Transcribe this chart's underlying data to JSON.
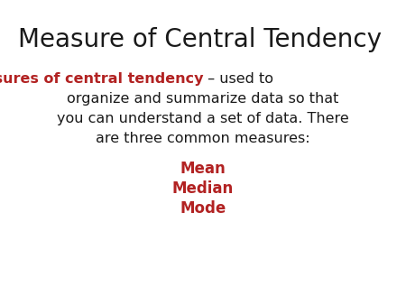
{
  "title": "Measure of Central Tendency",
  "title_color": "#1a1a1a",
  "title_fontsize": 20,
  "background_color": "#ffffff",
  "body_text_line1_red": "Measures of central tendency",
  "body_text_line1_black": " – used to",
  "body_text_line2": "organize and summarize data so that",
  "body_text_line3": "you can understand a set of data. There",
  "body_text_line4": "are three common measures:",
  "body_color_red": "#b22222",
  "body_color_black": "#1a1a1a",
  "body_fontsize": 11.5,
  "items": [
    "Mean",
    "Median",
    "Mode"
  ],
  "items_color": "#b22222",
  "items_fontsize": 12
}
